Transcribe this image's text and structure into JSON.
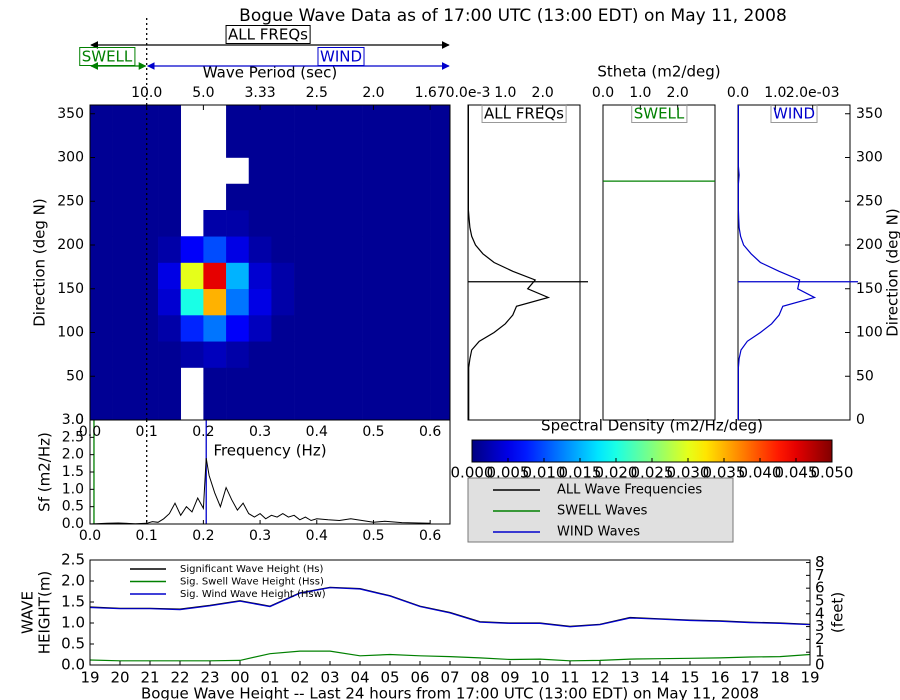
{
  "chart_data": [
    {
      "type": "heatmap",
      "title": "Bogue Wave Data as of 17:00 UTC (13:00 EDT) on May 11, 2008",
      "ylabel": "Direction (deg N)",
      "x2label": "Wave Period (sec)",
      "xlim": [
        0,
        0.635
      ],
      "ylim": [
        0,
        360
      ],
      "yticks": [
        0,
        50,
        100,
        150,
        200,
        250,
        300,
        350
      ],
      "x2ticks": [
        {
          "value": 0.1,
          "label": "10.0"
        },
        {
          "value": 0.2,
          "label": "5.0"
        },
        {
          "value": 0.3,
          "label": "3.33"
        },
        {
          "value": 0.4,
          "label": "2.5"
        },
        {
          "value": 0.5,
          "label": "2.0"
        },
        {
          "value": 0.6,
          "label": "1.67"
        }
      ],
      "separation_frequency": 0.1,
      "annotations": [
        {
          "text": "ALL FREQs",
          "color": "#000000"
        },
        {
          "text": "SWELL",
          "color": "#008000"
        },
        {
          "text": "WIND",
          "color": "#0000cc"
        }
      ],
      "xbins": [
        0,
        0.04,
        0.08,
        0.12,
        0.16,
        0.2,
        0.24,
        0.28,
        0.32,
        0.36,
        0.4,
        0.44,
        0.48,
        0.52,
        0.56,
        0.6,
        0.635
      ],
      "ybins": [
        0,
        30,
        60,
        90,
        120,
        150,
        180,
        210,
        240,
        270,
        300,
        330,
        360
      ],
      "z": [
        [
          0.001,
          0.001,
          0.001,
          0.001,
          null,
          0.001,
          0.001,
          0.001,
          0.001,
          0.001,
          0.001,
          0.001,
          0.001,
          0.001,
          0.001,
          0.001
        ],
        [
          0.001,
          0.001,
          0.001,
          0.001,
          null,
          0.001,
          0.001,
          0.001,
          0.001,
          0.001,
          0.001,
          0.001,
          0.001,
          0.001,
          0.001,
          0.001
        ],
        [
          0.001,
          0.001,
          0.001,
          0.001,
          0.002,
          0.003,
          0.002,
          0.001,
          0.001,
          0.001,
          0.001,
          0.001,
          0.001,
          0.001,
          0.001,
          0.001
        ],
        [
          0.001,
          0.001,
          0.001,
          0.002,
          0.008,
          0.012,
          0.006,
          0.003,
          0.001,
          0.001,
          0.001,
          0.001,
          0.001,
          0.001,
          0.001,
          0.001
        ],
        [
          0.001,
          0.001,
          0.001,
          0.004,
          0.02,
          0.035,
          0.012,
          0.005,
          0.002,
          0.001,
          0.001,
          0.001,
          0.001,
          0.001,
          0.001,
          0.001
        ],
        [
          0.001,
          0.001,
          0.001,
          0.005,
          0.03,
          0.045,
          0.015,
          0.004,
          0.002,
          0.001,
          0.001,
          0.001,
          0.001,
          0.001,
          0.001,
          0.001
        ],
        [
          0.001,
          0.001,
          0.001,
          0.002,
          0.006,
          0.01,
          0.005,
          0.002,
          0.001,
          0.001,
          0.001,
          0.001,
          0.001,
          0.001,
          0.001,
          0.001
        ],
        [
          0.001,
          0.001,
          0.001,
          0.001,
          null,
          0.002,
          0.002,
          0.001,
          0.001,
          0.001,
          0.001,
          0.001,
          0.001,
          0.001,
          0.001,
          0.001
        ],
        [
          0.001,
          0.001,
          0.001,
          0.001,
          null,
          null,
          0.001,
          0.001,
          0.001,
          0.001,
          0.001,
          0.001,
          0.001,
          0.001,
          0.001,
          0.001
        ],
        [
          0.001,
          0.001,
          0.001,
          0.001,
          null,
          null,
          null,
          0.001,
          0.001,
          0.001,
          0.001,
          0.001,
          0.001,
          0.001,
          0.001,
          0.001
        ],
        [
          0.001,
          0.001,
          0.001,
          0.001,
          null,
          null,
          0.001,
          0.001,
          0.001,
          0.001,
          0.001,
          0.001,
          0.001,
          0.001,
          0.001,
          0.001
        ],
        [
          0.001,
          0.001,
          0.001,
          0.001,
          null,
          null,
          0.001,
          0.001,
          0.001,
          0.001,
          0.001,
          0.001,
          0.001,
          0.001,
          0.001,
          0.001
        ]
      ],
      "colorbar": {
        "label": "Spectral Density (m2/Hz/deg)",
        "colormap": "jet",
        "lim": [
          0,
          0.05
        ],
        "ticks": [
          {
            "value": 0,
            "label": "0.000"
          },
          {
            "value": 0.005,
            "label": "0.005"
          },
          {
            "value": 0.01,
            "label": "0.010"
          },
          {
            "value": 0.015,
            "label": "0.015"
          },
          {
            "value": 0.02,
            "label": "0.020"
          },
          {
            "value": 0.025,
            "label": "0.025"
          },
          {
            "value": 0.03,
            "label": "0.030"
          },
          {
            "value": 0.035,
            "label": "0.035"
          },
          {
            "value": 0.04,
            "label": "0.040"
          },
          {
            "value": 0.045,
            "label": "0.045"
          },
          {
            "value": 0.05,
            "label": "0.050"
          }
        ]
      }
    },
    {
      "type": "direction_profile",
      "label": "ALL FREQs",
      "color": "#000000",
      "xlim": [
        0,
        3
      ],
      "ylim": [
        0,
        360
      ],
      "xticks": [
        {
          "value": 0,
          "label": "0.0e-3"
        },
        {
          "value": 1,
          "label": "1.0"
        },
        {
          "value": 2,
          "label": "2.0"
        }
      ],
      "directions": [
        0,
        10,
        20,
        30,
        40,
        50,
        60,
        70,
        80,
        90,
        100,
        110,
        120,
        130,
        140,
        150,
        160,
        170,
        180,
        190,
        200,
        210,
        220,
        230,
        240,
        250,
        260,
        270,
        280,
        290,
        300,
        310,
        320,
        330,
        340,
        350,
        360
      ],
      "values": [
        0.02,
        0.02,
        0.02,
        0.02,
        0.02,
        0.02,
        0.02,
        0.05,
        0.1,
        0.3,
        0.7,
        1.0,
        1.2,
        1.3,
        2.15,
        1.6,
        1.8,
        1.2,
        0.7,
        0.4,
        0.2,
        0.1,
        0.05,
        0.03,
        0.01,
        0.01,
        0.01,
        0.01,
        0.01,
        0.01,
        0.01,
        0.01,
        0.01,
        0.01,
        0.01,
        0.01,
        0.01
      ],
      "mean_direction": 158
    },
    {
      "type": "direction_profile",
      "label": "SWELL",
      "color": "#008000",
      "xlabel": "Stheta (m2/deg)",
      "xlim": [
        0,
        3
      ],
      "ylim": [
        0,
        360
      ],
      "xticks": [
        {
          "value": 0,
          "label": "0.0"
        },
        {
          "value": 1,
          "label": "1.0"
        },
        {
          "value": 2,
          "label": "2.0"
        }
      ],
      "mean_direction": 273
    },
    {
      "type": "direction_profile",
      "label": "WIND",
      "color": "#0000cc",
      "ylabel": "Direction (deg N)",
      "xlim": [
        0,
        3
      ],
      "ylim": [
        0,
        360
      ],
      "yticks": [
        0,
        50,
        100,
        150,
        200,
        250,
        300,
        350
      ],
      "xticks": [
        {
          "value": 0,
          "label": "0.0"
        },
        {
          "value": 1,
          "label": "1.0"
        },
        {
          "value": 2,
          "label": "2.0e-03"
        }
      ],
      "directions": [
        0,
        10,
        20,
        30,
        40,
        50,
        60,
        70,
        80,
        90,
        100,
        110,
        120,
        130,
        140,
        150,
        160,
        170,
        180,
        190,
        200,
        210,
        220,
        230,
        240,
        250,
        260,
        270,
        280,
        290,
        300,
        310,
        320,
        330,
        340,
        350,
        360
      ],
      "values": [
        0.01,
        0.01,
        0.01,
        0.01,
        0.01,
        0.01,
        0.01,
        0.03,
        0.08,
        0.25,
        0.6,
        0.9,
        1.1,
        1.2,
        2.05,
        1.6,
        1.65,
        1.1,
        0.6,
        0.35,
        0.15,
        0.07,
        0.03,
        0.02,
        0.01,
        0.01,
        0.01,
        0.01,
        0.03,
        0.01,
        0.01,
        0.01,
        0.01,
        0.01,
        0.01,
        0.01,
        0.01
      ],
      "mean_direction": 158
    },
    {
      "type": "line",
      "xlabel": "Frequency (Hz)",
      "ylabel": "Sf (m2/Hz)",
      "color": "#000000",
      "xlim": [
        0,
        0.635
      ],
      "ylim": [
        0,
        3
      ],
      "xticks": [
        {
          "value": 0,
          "label": "0.0"
        },
        0.1,
        0.2,
        0.3,
        0.4,
        0.5,
        0.6
      ],
      "yticks": [
        {
          "value": 0,
          "label": "0.0"
        },
        0.5,
        {
          "value": 1,
          "label": "1.0"
        },
        1.5,
        {
          "value": 2,
          "label": "2.0"
        },
        2.5,
        {
          "value": 3,
          "label": "3.0"
        }
      ],
      "x": [
        0.0,
        0.03,
        0.05,
        0.08,
        0.1,
        0.11,
        0.12,
        0.13,
        0.14,
        0.15,
        0.16,
        0.17,
        0.18,
        0.19,
        0.2,
        0.205,
        0.21,
        0.22,
        0.23,
        0.24,
        0.25,
        0.26,
        0.27,
        0.28,
        0.29,
        0.3,
        0.31,
        0.32,
        0.33,
        0.34,
        0.35,
        0.36,
        0.37,
        0.38,
        0.39,
        0.4,
        0.42,
        0.44,
        0.46,
        0.48,
        0.5,
        0.52,
        0.55,
        0.58,
        0.6
      ],
      "values": [
        0,
        0.02,
        0.03,
        0.01,
        0.02,
        0.07,
        0.05,
        0.15,
        0.3,
        0.6,
        0.25,
        0.5,
        0.35,
        0.75,
        0.45,
        1.9,
        1.4,
        0.9,
        0.5,
        1.05,
        0.7,
        0.4,
        0.6,
        0.3,
        0.2,
        0.3,
        0.15,
        0.25,
        0.2,
        0.3,
        0.2,
        0.25,
        0.12,
        0.2,
        0.1,
        0.15,
        0.12,
        0.1,
        0.15,
        0.1,
        0.05,
        0.08,
        0.04,
        0.03,
        0.02
      ],
      "vlines": [
        {
          "value": 0.205,
          "color": "#0000cc"
        },
        {
          "value": 0.007,
          "color": "#008000"
        }
      ],
      "separation_frequency": 0.1
    },
    {
      "type": "legend",
      "series": [
        {
          "name": "ALL Wave Frequencies",
          "color": "#000000"
        },
        {
          "name": "SWELL Waves",
          "color": "#008000"
        },
        {
          "name": "WIND Waves",
          "color": "#0000cc"
        }
      ]
    },
    {
      "type": "timeseries",
      "xlabel": "Bogue Wave Height -- Last 24 hours from 17:00 UTC (13:00 EDT) on May 11, 2008",
      "ylabel": [
        "WAVE",
        "HEIGHT(m)"
      ],
      "y2label": "(feet)",
      "categories": [
        "19",
        "20",
        "21",
        "22",
        "23",
        "00",
        "01",
        "02",
        "03",
        "04",
        "05",
        "06",
        "07",
        "08",
        "09",
        "10",
        "11",
        "12",
        "13",
        "14",
        "15",
        "16",
        "17",
        "18",
        "19"
      ],
      "ylim": [
        0,
        2.5
      ],
      "yticks": [
        {
          "value": 0,
          "label": "0.0"
        },
        0.5,
        {
          "value": 1,
          "label": "1.0"
        },
        1.5,
        {
          "value": 2,
          "label": "2.0"
        },
        2.5
      ],
      "y2lim": [
        0,
        8.2
      ],
      "y2ticks": [
        0,
        1,
        2,
        3,
        4,
        5,
        6,
        7,
        8
      ],
      "series": [
        {
          "name": "Significant Wave Height (Hs)",
          "color": "#000000",
          "values": [
            1.38,
            1.35,
            1.35,
            1.33,
            1.42,
            1.53,
            1.4,
            1.72,
            1.85,
            1.82,
            1.65,
            1.4,
            1.25,
            1.03,
            1.0,
            1.0,
            0.92,
            0.97,
            1.13,
            1.1,
            1.07,
            1.05,
            1.02,
            1.0,
            0.97
          ]
        },
        {
          "name": "Sig. Swell Wave Height (Hss)",
          "color": "#008000",
          "values": [
            0.12,
            0.1,
            0.1,
            0.1,
            0.1,
            0.11,
            0.27,
            0.33,
            0.33,
            0.22,
            0.25,
            0.22,
            0.2,
            0.17,
            0.13,
            0.14,
            0.1,
            0.11,
            0.14,
            0.15,
            0.16,
            0.17,
            0.19,
            0.2,
            0.25
          ]
        },
        {
          "name": "Sig. Wind Wave Height (Hsw)",
          "color": "#0000cc",
          "values": [
            1.37,
            1.34,
            1.34,
            1.32,
            1.41,
            1.52,
            1.39,
            1.71,
            1.84,
            1.81,
            1.64,
            1.39,
            1.24,
            1.02,
            0.99,
            0.99,
            0.91,
            0.96,
            1.12,
            1.09,
            1.06,
            1.04,
            1.01,
            0.99,
            0.96
          ]
        }
      ]
    }
  ]
}
